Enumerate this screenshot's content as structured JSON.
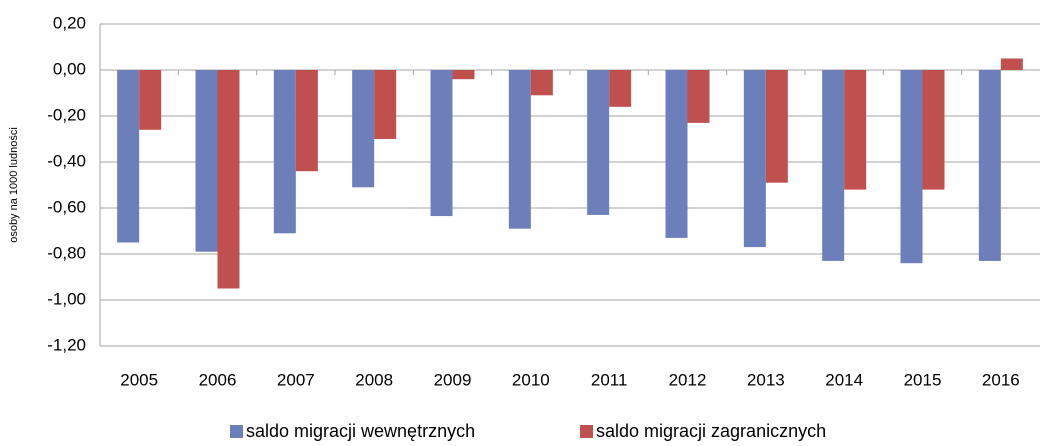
{
  "chart_data": {
    "type": "bar",
    "y_label": "osoby na 1000 ludności",
    "categories": [
      "2005",
      "2006",
      "2007",
      "2008",
      "2009",
      "2010",
      "2011",
      "2012",
      "2013",
      "2014",
      "2015",
      "2016"
    ],
    "series": [
      {
        "name": "saldo migracji wewnętrznych",
        "color": "#6d7fbb",
        "values": [
          -0.75,
          -0.79,
          -0.71,
          -0.51,
          -0.635,
          -0.69,
          -0.63,
          -0.73,
          -0.77,
          -0.83,
          -0.84,
          -0.83
        ]
      },
      {
        "name": "saldo migracji zagranicznych",
        "color": "#c0504d",
        "values": [
          -0.26,
          -0.95,
          -0.44,
          -0.3,
          -0.04,
          -0.11,
          -0.16,
          -0.23,
          -0.49,
          -0.52,
          -0.52,
          0.05
        ]
      }
    ],
    "ylim": [
      -1.2,
      0.2
    ],
    "yticks": [
      {
        "value": -1.2,
        "label": "-1,20"
      },
      {
        "value": -1.0,
        "label": "-1,00"
      },
      {
        "value": -0.8,
        "label": "-0,80"
      },
      {
        "value": -0.6,
        "label": "-0,60"
      },
      {
        "value": -0.4,
        "label": "-0,40"
      },
      {
        "value": -0.2,
        "label": "-0,20"
      },
      {
        "value": 0,
        "label": "0,00"
      },
      {
        "value": 0.2,
        "label": "0,20"
      }
    ],
    "grid": true,
    "legend": "bottom"
  }
}
